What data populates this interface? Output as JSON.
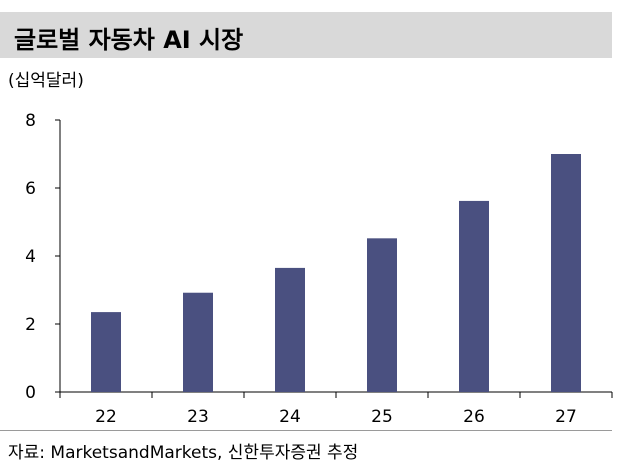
{
  "chart_data": {
    "type": "bar",
    "title": "글로벌 자동차 AI 시장",
    "ylabel": "(십억달러)",
    "xlabel": "",
    "categories": [
      "22",
      "23",
      "24",
      "25",
      "26",
      "27"
    ],
    "values": [
      2.35,
      2.92,
      3.65,
      4.52,
      5.62,
      7.0
    ],
    "ylim": [
      0,
      8
    ],
    "yticks": [
      0,
      2,
      4,
      6,
      8
    ],
    "grid": false,
    "bar_color": "#4a5080",
    "source": "자료: MarketsandMarkets, 신한투자증권 추정"
  }
}
